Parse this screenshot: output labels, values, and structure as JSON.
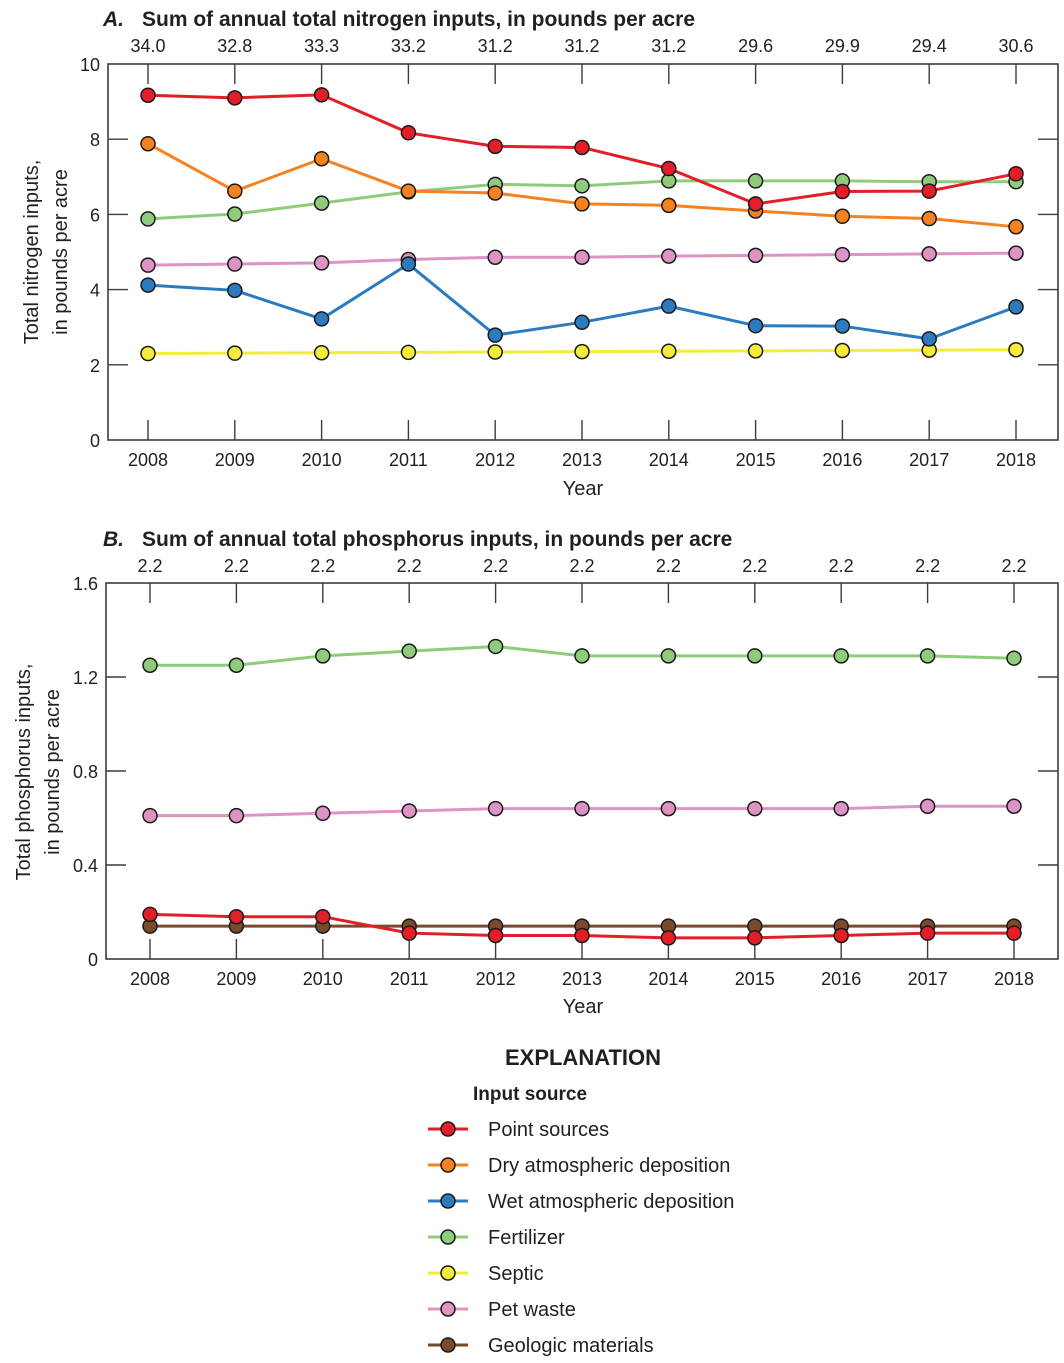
{
  "chart_data": [
    {
      "id": "A",
      "type": "line",
      "panel_letter": "A.",
      "title": "Sum of annual total nitrogen inputs, in pounds per acre",
      "top_axis_labels": [
        "34.0",
        "32.8",
        "33.3",
        "33.2",
        "31.2",
        "31.2",
        "31.2",
        "29.6",
        "29.9",
        "29.4",
        "30.6"
      ],
      "xlabel": "Year",
      "ylabel_lines": [
        "Total nitrogen inputs,",
        "in pounds per acre"
      ],
      "x": [
        2008,
        2009,
        2010,
        2011,
        2012,
        2013,
        2014,
        2015,
        2016,
        2017,
        2018
      ],
      "x_tick_labels": [
        "2008",
        "2009",
        "2010",
        "2011",
        "2012",
        "2013",
        "2014",
        "2015",
        "2016",
        "2017",
        "2018"
      ],
      "ylim": [
        0,
        10
      ],
      "y_ticks": [
        0,
        2,
        4,
        6,
        8,
        10
      ],
      "y_tick_labels": [
        "0",
        "2",
        "4",
        "6",
        "8",
        "10"
      ],
      "grid": false,
      "series": [
        {
          "name": "Fertilizer",
          "key": "fertilizer",
          "values": [
            5.88,
            6.01,
            6.3,
            6.6,
            6.8,
            6.76,
            6.89,
            6.89,
            6.89,
            6.87,
            6.87
          ]
        },
        {
          "name": "Pet waste",
          "key": "pet",
          "values": [
            4.65,
            4.68,
            4.71,
            4.8,
            4.86,
            4.86,
            4.89,
            4.91,
            4.93,
            4.95,
            4.97
          ]
        },
        {
          "name": "Septic",
          "key": "septic",
          "values": [
            2.3,
            2.31,
            2.32,
            2.33,
            2.34,
            2.35,
            2.36,
            2.37,
            2.38,
            2.39,
            2.4
          ]
        },
        {
          "name": "Wet atmospheric deposition",
          "key": "wet",
          "values": [
            4.12,
            3.98,
            3.22,
            4.68,
            2.79,
            3.13,
            3.56,
            3.04,
            3.03,
            2.69,
            3.54
          ]
        },
        {
          "name": "Dry atmospheric deposition",
          "key": "dry",
          "values": [
            7.88,
            6.62,
            7.48,
            6.62,
            6.57,
            6.28,
            6.24,
            6.09,
            5.95,
            5.89,
            5.67
          ]
        },
        {
          "name": "Point sources",
          "key": "point",
          "values": [
            9.17,
            9.1,
            9.18,
            8.17,
            7.81,
            7.78,
            7.22,
            6.28,
            6.61,
            6.62,
            7.08
          ]
        }
      ]
    },
    {
      "id": "B",
      "type": "line",
      "panel_letter": "B.",
      "title": "Sum of annual total phosphorus inputs, in pounds per acre",
      "top_axis_labels": [
        "2.2",
        "2.2",
        "2.2",
        "2.2",
        "2.2",
        "2.2",
        "2.2",
        "2.2",
        "2.2",
        "2.2",
        "2.2"
      ],
      "xlabel": "Year",
      "ylabel_lines": [
        "Total phosphorus inputs,",
        "in pounds per acre"
      ],
      "x": [
        2008,
        2009,
        2010,
        2011,
        2012,
        2013,
        2014,
        2015,
        2016,
        2017,
        2018
      ],
      "x_tick_labels": [
        "2008",
        "2009",
        "2010",
        "2011",
        "2012",
        "2013",
        "2014",
        "2015",
        "2016",
        "2017",
        "2018"
      ],
      "ylim": [
        0,
        1.6
      ],
      "y_ticks": [
        0,
        0.4,
        0.8,
        1.2,
        1.6
      ],
      "y_tick_labels": [
        "0",
        "0.4",
        "0.8",
        "1.2",
        "1.6"
      ],
      "grid": false,
      "series": [
        {
          "name": "Fertilizer",
          "key": "fertilizer",
          "values": [
            1.25,
            1.25,
            1.29,
            1.31,
            1.33,
            1.29,
            1.29,
            1.29,
            1.29,
            1.29,
            1.28
          ]
        },
        {
          "name": "Pet waste",
          "key": "pet",
          "values": [
            0.61,
            0.61,
            0.62,
            0.63,
            0.64,
            0.64,
            0.64,
            0.64,
            0.64,
            0.65,
            0.65
          ]
        },
        {
          "name": "Geologic materials",
          "key": "geologic",
          "values": [
            0.14,
            0.14,
            0.14,
            0.14,
            0.14,
            0.14,
            0.14,
            0.14,
            0.14,
            0.14,
            0.14
          ]
        },
        {
          "name": "Point sources",
          "key": "point",
          "values": [
            0.19,
            0.18,
            0.18,
            0.11,
            0.1,
            0.1,
            0.09,
            0.09,
            0.1,
            0.11,
            0.11
          ]
        }
      ]
    }
  ],
  "colors": {
    "point": "#e31e26",
    "dry": "#f58220",
    "wet": "#2c7bbf",
    "fertilizer": "#8ecb7a",
    "septic": "#f3ec3a",
    "pet": "#dd93c3",
    "geologic": "#7a4a2e",
    "axis": "#3c3c3c",
    "marker_outline": "#1a1a1a"
  },
  "legend": {
    "title": "EXPLANATION",
    "subtitle": "Input source",
    "placement": "bottom-center",
    "items": [
      {
        "key": "point",
        "label": "Point sources"
      },
      {
        "key": "dry",
        "label": "Dry atmospheric deposition"
      },
      {
        "key": "wet",
        "label": "Wet atmospheric deposition"
      },
      {
        "key": "fertilizer",
        "label": "Fertilizer"
      },
      {
        "key": "septic",
        "label": "Septic"
      },
      {
        "key": "pet",
        "label": "Pet waste"
      },
      {
        "key": "geologic",
        "label": "Geologic materials"
      }
    ]
  }
}
